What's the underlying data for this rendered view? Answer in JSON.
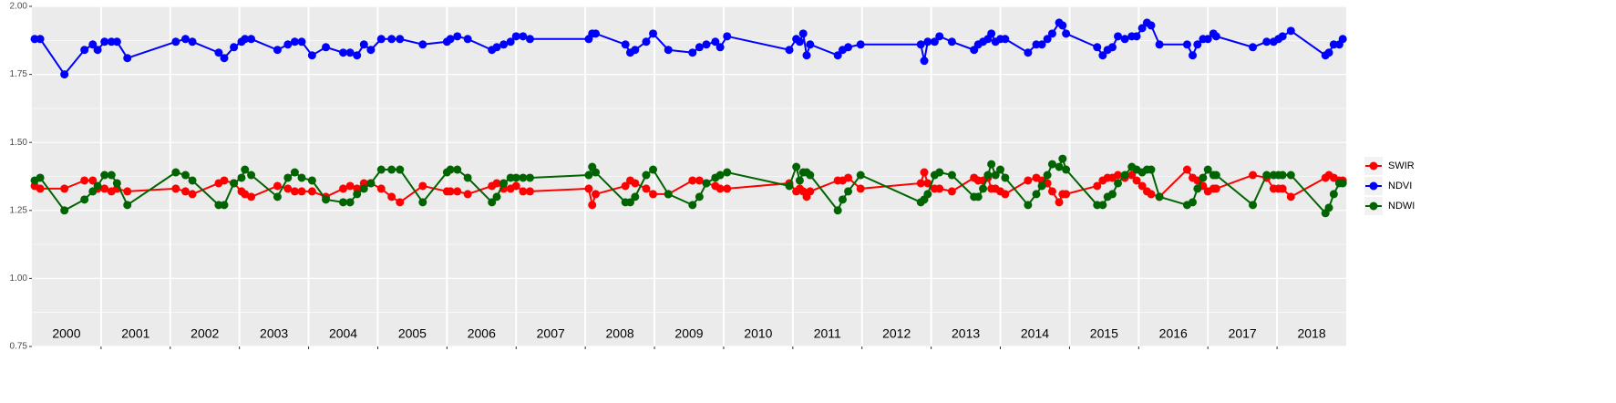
{
  "chart_data": {
    "type": "line",
    "year_labels": [
      "2000",
      "2001",
      "2002",
      "2003",
      "2004",
      "2005",
      "2006",
      "2007",
      "2008",
      "2009",
      "2010",
      "2011",
      "2012",
      "2013",
      "2014",
      "2015",
      "2016",
      "2017",
      "2018"
    ],
    "x": [
      2000.04,
      2000.12,
      2000.47,
      2000.76,
      2000.88,
      2000.95,
      2001.05,
      2001.15,
      2001.23,
      2001.38,
      2002.08,
      2002.22,
      2002.32,
      2002.7,
      2002.78,
      2002.92,
      2003.03,
      2003.08,
      2003.17,
      2003.55,
      2003.7,
      2003.8,
      2003.9,
      2004.05,
      2004.25,
      2004.5,
      2004.6,
      2004.7,
      2004.8,
      2004.9,
      2005.05,
      2005.2,
      2005.32,
      2005.65,
      2006.0,
      2006.05,
      2006.15,
      2006.3,
      2006.65,
      2006.72,
      2006.82,
      2006.92,
      2007.0,
      2007.1,
      2007.2,
      2008.05,
      2008.1,
      2008.15,
      2008.58,
      2008.65,
      2008.72,
      2008.88,
      2008.98,
      2009.2,
      2009.55,
      2009.65,
      2009.75,
      2009.88,
      2009.95,
      2010.05,
      2010.95,
      2011.05,
      2011.1,
      2011.15,
      2011.2,
      2011.25,
      2011.65,
      2011.72,
      2011.8,
      2011.98,
      2012.85,
      2012.9,
      2012.95,
      2013.05,
      2013.12,
      2013.3,
      2013.62,
      2013.68,
      2013.75,
      2013.82,
      2013.87,
      2013.93,
      2014.0,
      2014.07,
      2014.4,
      2014.52,
      2014.6,
      2014.68,
      2014.75,
      2014.85,
      2014.9,
      2014.95,
      2015.4,
      2015.48,
      2015.55,
      2015.62,
      2015.7,
      2015.8,
      2015.9,
      2015.97,
      2016.05,
      2016.12,
      2016.18,
      2016.3,
      2016.7,
      2016.78,
      2016.85,
      2016.93,
      2017.0,
      2017.08,
      2017.12,
      2017.65,
      2017.85,
      2017.95,
      2018.02,
      2018.08,
      2018.2,
      2018.7,
      2018.75,
      2018.82,
      2018.9,
      2018.95
    ],
    "series": [
      {
        "name": "SWIR",
        "color": "#ff0000",
        "values": [
          1.34,
          1.33,
          1.33,
          1.36,
          1.36,
          1.33,
          1.33,
          1.32,
          1.33,
          1.32,
          1.33,
          1.32,
          1.31,
          1.35,
          1.36,
          1.35,
          1.32,
          1.31,
          1.3,
          1.34,
          1.33,
          1.32,
          1.32,
          1.32,
          1.3,
          1.33,
          1.34,
          1.33,
          1.35,
          1.35,
          1.33,
          1.3,
          1.28,
          1.34,
          1.32,
          1.32,
          1.32,
          1.31,
          1.34,
          1.35,
          1.33,
          1.33,
          1.34,
          1.32,
          1.32,
          1.33,
          1.27,
          1.31,
          1.34,
          1.36,
          1.35,
          1.33,
          1.31,
          1.31,
          1.36,
          1.36,
          1.35,
          1.34,
          1.33,
          1.33,
          1.35,
          1.32,
          1.33,
          1.32,
          1.3,
          1.32,
          1.36,
          1.36,
          1.37,
          1.33,
          1.35,
          1.39,
          1.35,
          1.33,
          1.33,
          1.32,
          1.37,
          1.36,
          1.36,
          1.37,
          1.33,
          1.33,
          1.32,
          1.31,
          1.36,
          1.37,
          1.36,
          1.35,
          1.32,
          1.28,
          1.31,
          1.31,
          1.34,
          1.36,
          1.37,
          1.37,
          1.38,
          1.37,
          1.38,
          1.36,
          1.34,
          1.32,
          1.31,
          1.3,
          1.4,
          1.37,
          1.36,
          1.34,
          1.32,
          1.33,
          1.33,
          1.38,
          1.37,
          1.33,
          1.33,
          1.33,
          1.3,
          1.37,
          1.38,
          1.37,
          1.36,
          1.36
        ]
      },
      {
        "name": "NDVI",
        "color": "#0000ff",
        "values": [
          1.88,
          1.88,
          1.75,
          1.84,
          1.86,
          1.84,
          1.87,
          1.87,
          1.87,
          1.81,
          1.87,
          1.88,
          1.87,
          1.83,
          1.81,
          1.85,
          1.87,
          1.88,
          1.88,
          1.84,
          1.86,
          1.87,
          1.87,
          1.82,
          1.85,
          1.83,
          1.83,
          1.82,
          1.86,
          1.84,
          1.88,
          1.88,
          1.88,
          1.86,
          1.87,
          1.88,
          1.89,
          1.88,
          1.84,
          1.85,
          1.86,
          1.87,
          1.89,
          1.89,
          1.88,
          1.88,
          1.9,
          1.9,
          1.86,
          1.83,
          1.84,
          1.87,
          1.9,
          1.84,
          1.83,
          1.85,
          1.86,
          1.87,
          1.85,
          1.89,
          1.84,
          1.88,
          1.87,
          1.9,
          1.82,
          1.86,
          1.82,
          1.84,
          1.85,
          1.86,
          1.86,
          1.8,
          1.87,
          1.87,
          1.89,
          1.87,
          1.84,
          1.86,
          1.87,
          1.88,
          1.9,
          1.87,
          1.88,
          1.88,
          1.83,
          1.86,
          1.86,
          1.88,
          1.9,
          1.94,
          1.93,
          1.9,
          1.85,
          1.82,
          1.84,
          1.85,
          1.89,
          1.88,
          1.89,
          1.89,
          1.92,
          1.94,
          1.93,
          1.86,
          1.86,
          1.82,
          1.86,
          1.88,
          1.88,
          1.9,
          1.89,
          1.85,
          1.87,
          1.87,
          1.88,
          1.89,
          1.91,
          1.82,
          1.83,
          1.86,
          1.86,
          1.88
        ]
      },
      {
        "name": "NDWI",
        "color": "#006400",
        "values": [
          1.36,
          1.37,
          1.25,
          1.29,
          1.32,
          1.34,
          1.38,
          1.38,
          1.35,
          1.27,
          1.39,
          1.38,
          1.36,
          1.27,
          1.27,
          1.35,
          1.37,
          1.4,
          1.38,
          1.3,
          1.37,
          1.39,
          1.37,
          1.36,
          1.29,
          1.28,
          1.28,
          1.31,
          1.33,
          1.35,
          1.4,
          1.4,
          1.4,
          1.28,
          1.39,
          1.4,
          1.4,
          1.37,
          1.28,
          1.3,
          1.35,
          1.37,
          1.37,
          1.37,
          1.37,
          1.38,
          1.41,
          1.39,
          1.28,
          1.28,
          1.3,
          1.38,
          1.4,
          1.31,
          1.27,
          1.3,
          1.35,
          1.37,
          1.38,
          1.39,
          1.34,
          1.41,
          1.36,
          1.39,
          1.39,
          1.38,
          1.25,
          1.29,
          1.32,
          1.38,
          1.28,
          1.29,
          1.31,
          1.38,
          1.39,
          1.38,
          1.3,
          1.3,
          1.33,
          1.38,
          1.42,
          1.38,
          1.4,
          1.37,
          1.27,
          1.31,
          1.34,
          1.38,
          1.42,
          1.41,
          1.44,
          1.4,
          1.27,
          1.27,
          1.3,
          1.31,
          1.35,
          1.38,
          1.41,
          1.4,
          1.39,
          1.4,
          1.4,
          1.3,
          1.27,
          1.28,
          1.33,
          1.37,
          1.4,
          1.38,
          1.38,
          1.27,
          1.38,
          1.38,
          1.38,
          1.38,
          1.38,
          1.24,
          1.26,
          1.31,
          1.35,
          1.35
        ]
      }
    ],
    "xlim": [
      2000,
      2019
    ],
    "xticks": [
      2001,
      2002,
      2003,
      2004,
      2005,
      2006,
      2007,
      2008,
      2009,
      2010,
      2011,
      2012,
      2013,
      2014,
      2015,
      2016,
      2017,
      2018
    ],
    "ylim": [
      0.75,
      2.0
    ],
    "yticks": [
      0.75,
      {
        "value": 1.0,
        "label": "1.00"
      },
      1.25,
      {
        "value": 1.5,
        "label": "1.50"
      },
      1.75,
      {
        "value": 2.0,
        "label": "2.00"
      }
    ],
    "grid": true,
    "legend": "right"
  }
}
